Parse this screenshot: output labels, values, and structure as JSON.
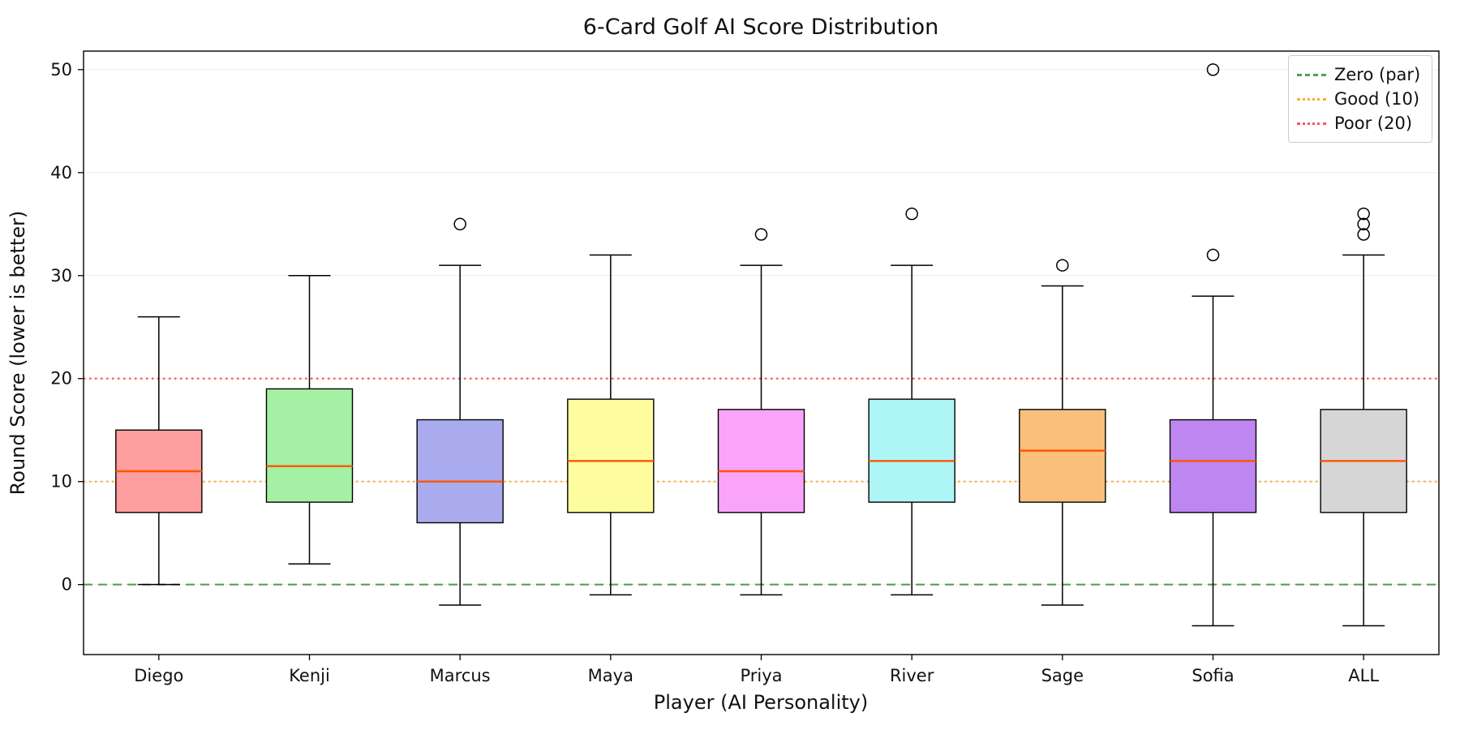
{
  "chart_data": {
    "type": "boxplot",
    "title": "6-Card Golf AI Score Distribution",
    "xlabel": "Player (AI Personality)",
    "ylabel": "Round Score (lower is better)",
    "ylim": [
      -6.8,
      51.8
    ],
    "yticks": [
      0,
      10,
      20,
      30,
      40,
      50
    ],
    "grid": "horizontal",
    "legend_position": "top-right",
    "median_color": "#ff5500",
    "box_edge_color": "#000000",
    "reference_lines": [
      {
        "label": "Zero (par)",
        "y": 0,
        "color": "#55a055",
        "style": "dashed"
      },
      {
        "label": "Good (10)",
        "y": 10,
        "color": "#ffaa33",
        "style": "dotted"
      },
      {
        "label": "Poor (20)",
        "y": 20,
        "color": "#ff5555",
        "style": "dotted"
      }
    ],
    "series": [
      {
        "name": "Diego",
        "color": "#ff9e9e",
        "whisker_low": 0,
        "q1": 7,
        "median": 11,
        "q3": 15,
        "whisker_high": 26,
        "outliers": []
      },
      {
        "name": "Kenji",
        "color": "#a4f0a4",
        "whisker_low": 2,
        "q1": 8,
        "median": 11.5,
        "q3": 19,
        "whisker_high": 30,
        "outliers": []
      },
      {
        "name": "Marcus",
        "color": "#ababf0",
        "whisker_low": -2,
        "q1": 6,
        "median": 10,
        "q3": 16,
        "whisker_high": 31,
        "outliers": [
          35
        ]
      },
      {
        "name": "Maya",
        "color": "#fdfda0",
        "whisker_low": -1,
        "q1": 7,
        "median": 12,
        "q3": 18,
        "whisker_high": 32,
        "outliers": []
      },
      {
        "name": "Priya",
        "color": "#f9a4f9",
        "whisker_low": -1,
        "q1": 7,
        "median": 11,
        "q3": 17,
        "whisker_high": 31,
        "outliers": [
          34
        ]
      },
      {
        "name": "River",
        "color": "#aef6f6",
        "whisker_low": -1,
        "q1": 8,
        "median": 12,
        "q3": 18,
        "whisker_high": 31,
        "outliers": [
          36
        ]
      },
      {
        "name": "Sage",
        "color": "#fbbf7c",
        "whisker_low": -2,
        "q1": 8,
        "median": 13,
        "q3": 17,
        "whisker_high": 29,
        "outliers": [
          31
        ]
      },
      {
        "name": "Sofia",
        "color": "#be86f0",
        "whisker_low": -4,
        "q1": 7,
        "median": 12,
        "q3": 16,
        "whisker_high": 28,
        "outliers": [
          32,
          50
        ]
      },
      {
        "name": "ALL",
        "color": "#d6d6d6",
        "whisker_low": -4,
        "q1": 7,
        "median": 12,
        "q3": 17,
        "whisker_high": 32,
        "outliers": [
          34,
          35,
          36
        ]
      }
    ]
  }
}
